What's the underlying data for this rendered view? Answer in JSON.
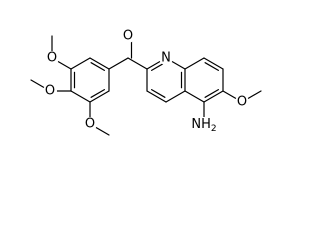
{
  "molecule": {
    "carbonyl_oxygen": "O",
    "ring_nitrogen": "N",
    "methoxy_oxygens": [
      "O",
      "O",
      "O",
      "O"
    ],
    "amine": {
      "main": "NH",
      "sub": "2"
    }
  }
}
